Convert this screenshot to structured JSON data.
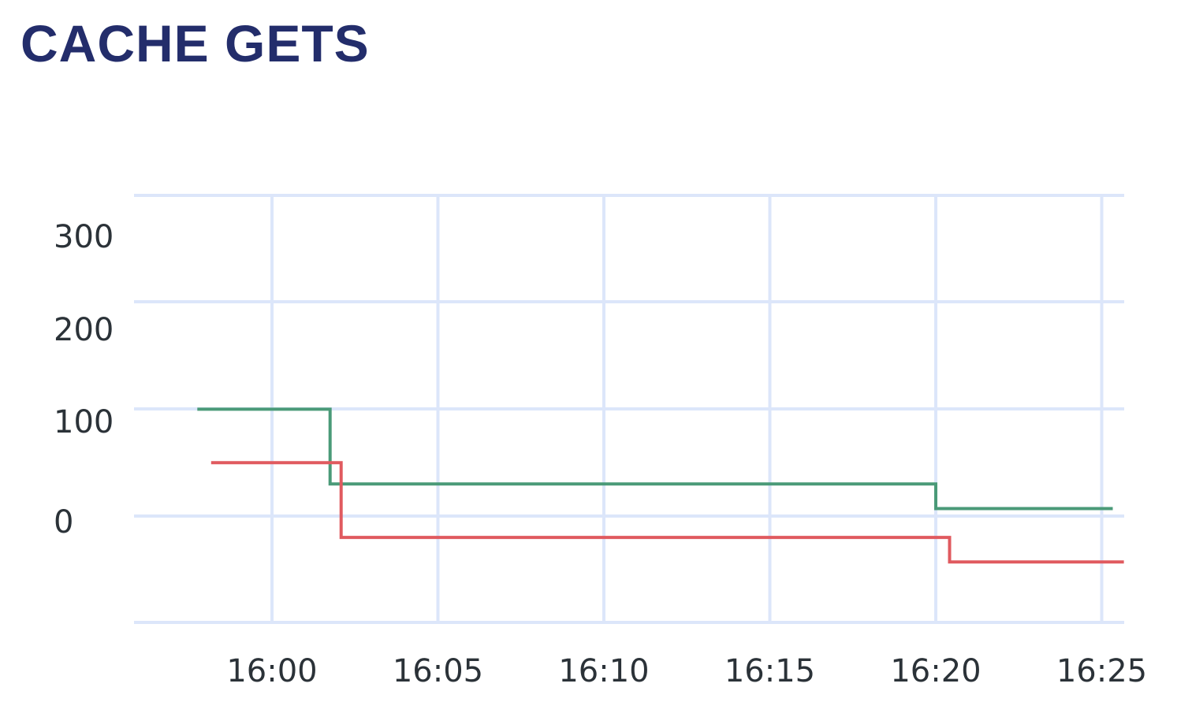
{
  "title": "CACHE GETS",
  "colors": {
    "title": "#232d6b",
    "grid": "#dce6fa",
    "tick_text": "#2b3238",
    "series": [
      "#4a9a78",
      "#e05a5f"
    ]
  },
  "chart_data": {
    "type": "line",
    "step": true,
    "title": "CACHE GETS",
    "xlabel": "",
    "ylabel": "",
    "x_ticks": [
      "16:00",
      "16:05",
      "16:10",
      "16:15",
      "16:20",
      "16:25"
    ],
    "y_ticks": [
      300,
      200,
      100,
      0
    ],
    "grid": true,
    "legend": "none",
    "series": [
      {
        "color": "#4a9a78",
        "points": [
          {
            "x": "15:57:45",
            "y": 100
          },
          {
            "x": "16:01:45",
            "y": 30
          },
          {
            "x": "16:20:00",
            "y": 7
          },
          {
            "x": "16:25:20",
            "y": 7
          }
        ]
      },
      {
        "color": "#e05a5f",
        "points": [
          {
            "x": "15:58:10",
            "y": 50
          },
          {
            "x": "16:02:05",
            "y": -20
          },
          {
            "x": "16:20:25",
            "y": -43
          },
          {
            "x": "16:25:40",
            "y": -43
          }
        ]
      }
    ]
  }
}
